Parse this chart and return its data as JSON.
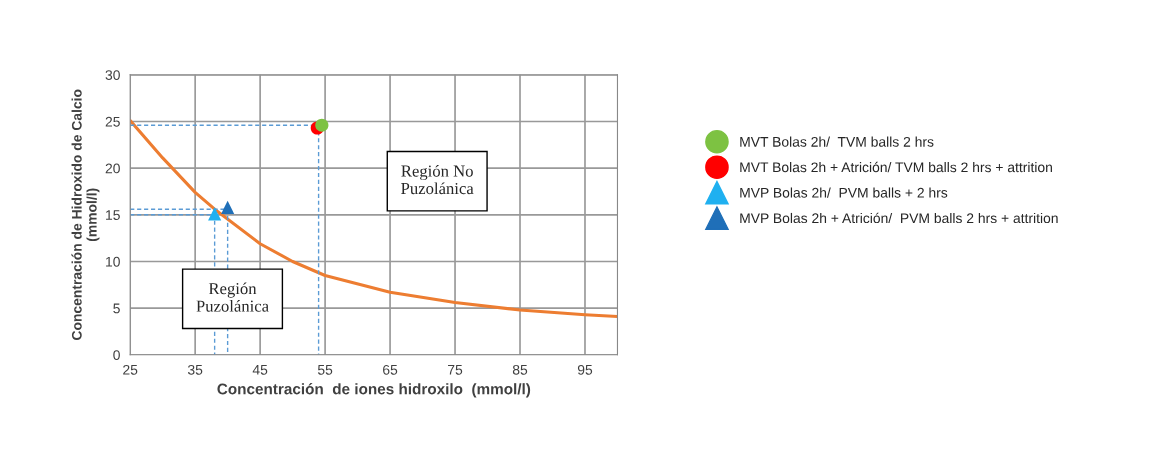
{
  "chart_data": {
    "type": "scatter",
    "xlabel": "Concentración  de iones hidroxilo  (mmol/l)",
    "ylabel": "Concentración de Hidroxido de Calcio\n(mmol/l)",
    "xlim": [
      25,
      100
    ],
    "xticks": [
      25,
      35,
      45,
      55,
      65,
      75,
      85,
      95
    ],
    "ylim": [
      0,
      30
    ],
    "yticks": [
      0,
      5,
      10,
      15,
      20,
      25,
      30
    ],
    "grid": true,
    "legend": "right",
    "series": [
      {
        "type": "line",
        "color": "#ed7d31",
        "line_style": "solid",
        "x": [
          25,
          30,
          35,
          38,
          45,
          50,
          55,
          65,
          75,
          85,
          95,
          100
        ],
        "values": [
          25.1,
          21.1,
          17.4,
          15.6,
          11.9,
          10.0,
          8.5,
          6.7,
          5.6,
          4.8,
          4.3,
          4.1
        ]
      },
      {
        "type": "line",
        "color": "#5b9bd5",
        "line_style": "dashed",
        "x": [
          25,
          54,
          54
        ],
        "values": [
          24.6,
          24.6,
          0
        ]
      },
      {
        "type": "line",
        "color": "#5b9bd5",
        "line_style": "dashed",
        "x": [
          25,
          38,
          38
        ],
        "values": [
          15.0,
          15.0,
          0
        ]
      },
      {
        "type": "line",
        "color": "#5b9bd5",
        "line_style": "dashed",
        "x": [
          25,
          40,
          40
        ],
        "values": [
          15.6,
          15.6,
          0
        ]
      },
      {
        "name": "MVT Bolas 2h/  TVM balls 2 hrs",
        "color": "#7dc242",
        "marker": "circle",
        "x": [
          54.5
        ],
        "values": [
          24.6
        ]
      },
      {
        "name": "MVT Bolas 2h + Atrición/ TVM balls 2 hrs + attrition",
        "color": "#ff0000",
        "marker": "circle",
        "x": [
          53.8
        ],
        "values": [
          24.3
        ]
      },
      {
        "name": "MVP Bolas 2h/  PVM balls + 2 hrs",
        "color": "#1fb0f0",
        "marker": "triangle",
        "x": [
          38
        ],
        "values": [
          15.1
        ]
      },
      {
        "name": "MVP Bolas 2h + Atrición/  PVM balls 2 hrs + attrition",
        "color": "#1f6fb8",
        "marker": "triangle",
        "x": [
          40
        ],
        "values": [
          15.8
        ]
      }
    ],
    "annotations": [
      "Región No\nPuzolánica",
      "Región\nPuzolánica"
    ]
  }
}
